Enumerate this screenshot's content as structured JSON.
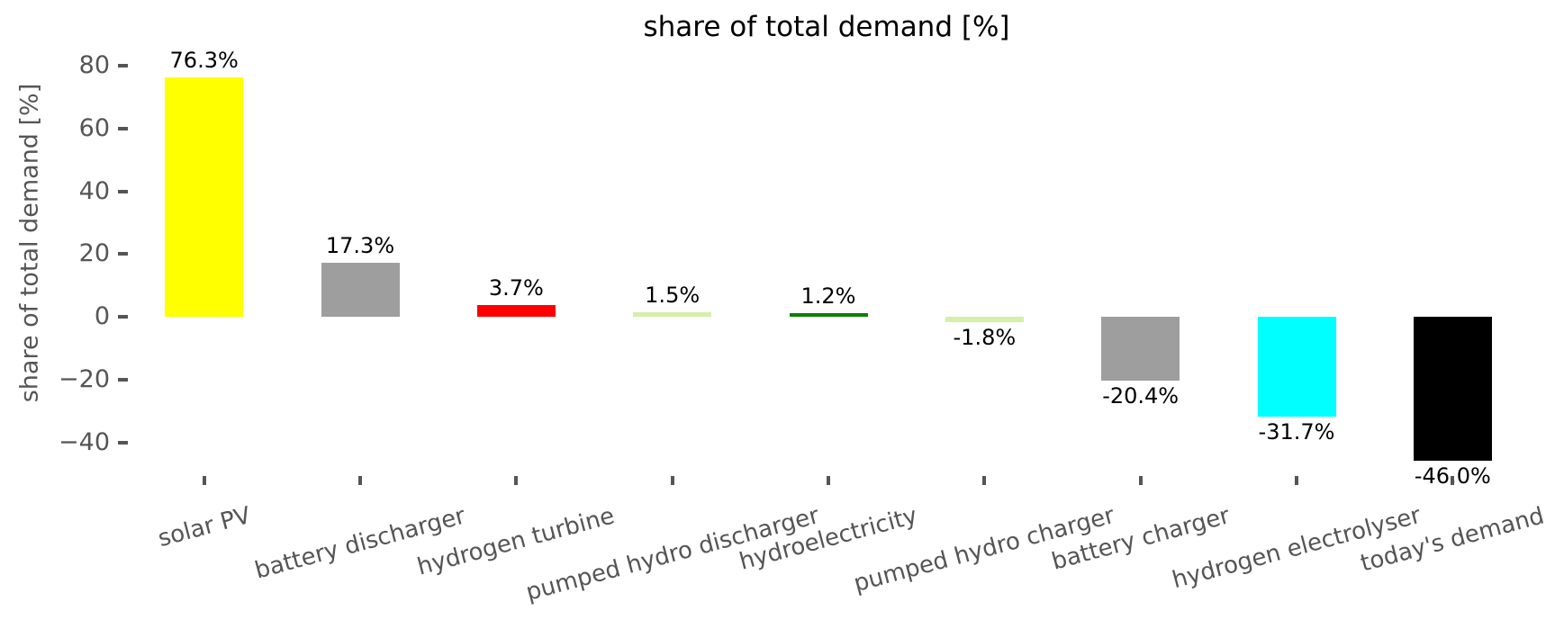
{
  "title": "share of total demand [%]",
  "chart_data": {
    "type": "bar",
    "title": "share of total demand [%]",
    "xlabel": "",
    "ylabel": "share of total demand [%]",
    "categories": [
      "solar PV",
      "battery discharger",
      "hydrogen turbine",
      "pumped hydro discharger",
      "hydroelectricity",
      "pumped hydro charger",
      "battery charger",
      "hydrogen electrolyser",
      "today's demand"
    ],
    "values": [
      76.3,
      17.3,
      3.7,
      1.5,
      1.2,
      -1.8,
      -20.4,
      -31.7,
      -46.0
    ],
    "value_labels": [
      "76.3%",
      "17.3%",
      "3.7%",
      "1.5%",
      "1.2%",
      "-1.8%",
      "-20.4%",
      "-31.7%",
      "-46.0%"
    ],
    "bar_colors": [
      "#ffff00",
      "#9e9e9e",
      "#ff0000",
      "#d5f0a8",
      "#088000",
      "#d5f0a8",
      "#9e9e9e",
      "#00ffff",
      "#000000"
    ],
    "yticks": [
      80,
      60,
      40,
      20,
      0,
      -20,
      -40
    ],
    "ytick_labels": [
      "80",
      "60",
      "40",
      "20",
      "0",
      "−20",
      "−40"
    ],
    "ylim": [
      -54,
      85
    ],
    "grid": false,
    "legend": false,
    "spines": false,
    "x_tick_label_rotation_deg": 15,
    "axis_text_color": "#555555",
    "title_color": "#000000",
    "value_label_color": "#000000",
    "background_color": "#ffffff"
  }
}
